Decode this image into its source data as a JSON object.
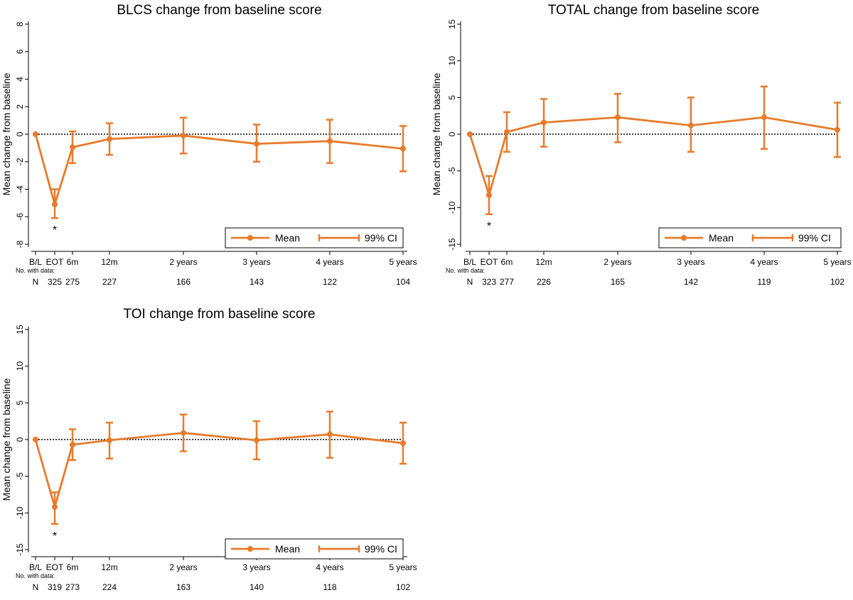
{
  "colors": {
    "series": "#e87a2c",
    "axis": "#000000",
    "errbar_alt": "#2b2b8c"
  },
  "x_tick_labels": [
    "B/L",
    "EOT",
    "6m",
    "12m",
    "2 years",
    "3 years",
    "4 years",
    "5 years"
  ],
  "legend": {
    "mean_label": "Mean",
    "ci_label": "99% CI"
  },
  "n_caption": "No. with data:",
  "n_row_label": "N",
  "ylabel": "Mean change from baseline",
  "significance_marker": "*",
  "chart_data": [
    {
      "type": "line",
      "title": "BLCS change from baseline score",
      "ylabel": "Mean change from baseline",
      "ylim": [
        -8,
        8
      ],
      "yticks": [
        8,
        6,
        4,
        2,
        0,
        -2,
        -4,
        -6,
        -8
      ],
      "x": [
        "B/L",
        "EOT",
        "6m",
        "12m",
        "2 years",
        "3 years",
        "4 years",
        "5 years"
      ],
      "series": [
        {
          "name": "Mean",
          "values": [
            0,
            -5.1,
            -0.95,
            -0.35,
            -0.1,
            -0.7,
            -0.5,
            -1.05
          ]
        },
        {
          "name": "99% CI",
          "lower": [
            null,
            -6.1,
            -2.1,
            -1.5,
            -1.4,
            -2.0,
            -2.1,
            -2.7
          ],
          "upper": [
            null,
            -4.0,
            0.2,
            0.8,
            1.2,
            0.7,
            1.05,
            0.6
          ]
        }
      ],
      "n_with_data": [
        "",
        "325",
        "275",
        "227",
        "166",
        "143",
        "122",
        "104"
      ],
      "significant": [
        "EOT"
      ],
      "reference_line": 0,
      "legend_position": "bottom-right"
    },
    {
      "type": "line",
      "title": "TOTAL change from baseline score",
      "ylabel": "Mean change from baseline",
      "ylim": [
        -15,
        15
      ],
      "yticks": [
        15,
        10,
        5,
        0,
        -5,
        -10,
        -15
      ],
      "x": [
        "B/L",
        "EOT",
        "6m",
        "12m",
        "2 years",
        "3 years",
        "4 years",
        "5 years"
      ],
      "series": [
        {
          "name": "Mean",
          "values": [
            0,
            -8.3,
            0.3,
            1.6,
            2.3,
            1.2,
            2.3,
            0.6
          ]
        },
        {
          "name": "99% CI",
          "lower": [
            null,
            -10.9,
            -2.4,
            -1.7,
            -1.1,
            -2.4,
            -2.0,
            -3.1
          ],
          "upper": [
            null,
            -5.7,
            3.0,
            4.8,
            5.5,
            5.0,
            6.5,
            4.3
          ]
        }
      ],
      "n_with_data": [
        "",
        "323",
        "277",
        "226",
        "165",
        "142",
        "119",
        "102"
      ],
      "significant": [
        "EOT"
      ],
      "reference_line": 0,
      "legend_position": "bottom-right"
    },
    {
      "type": "line",
      "title": "TOI change from baseline score",
      "ylabel": "Mean change from baseline",
      "ylim": [
        -15,
        15
      ],
      "yticks": [
        15,
        10,
        5,
        0,
        -5,
        -10,
        -15
      ],
      "x": [
        "B/L",
        "EOT",
        "6m",
        "12m",
        "2 years",
        "3 years",
        "4 years",
        "5 years"
      ],
      "series": [
        {
          "name": "Mean",
          "values": [
            0,
            -9.2,
            -0.7,
            -0.1,
            0.9,
            -0.1,
            0.7,
            -0.5
          ]
        },
        {
          "name": "99% CI",
          "lower": [
            null,
            -11.5,
            -2.8,
            -2.6,
            -1.6,
            -2.7,
            -2.5,
            -3.3
          ],
          "upper": [
            null,
            -7.2,
            1.4,
            2.3,
            3.4,
            2.5,
            3.8,
            2.3
          ]
        }
      ],
      "n_with_data": [
        "",
        "319",
        "273",
        "224",
        "163",
        "140",
        "118",
        "102"
      ],
      "significant": [
        "EOT"
      ],
      "reference_line": 0,
      "legend_position": "bottom-right"
    }
  ]
}
